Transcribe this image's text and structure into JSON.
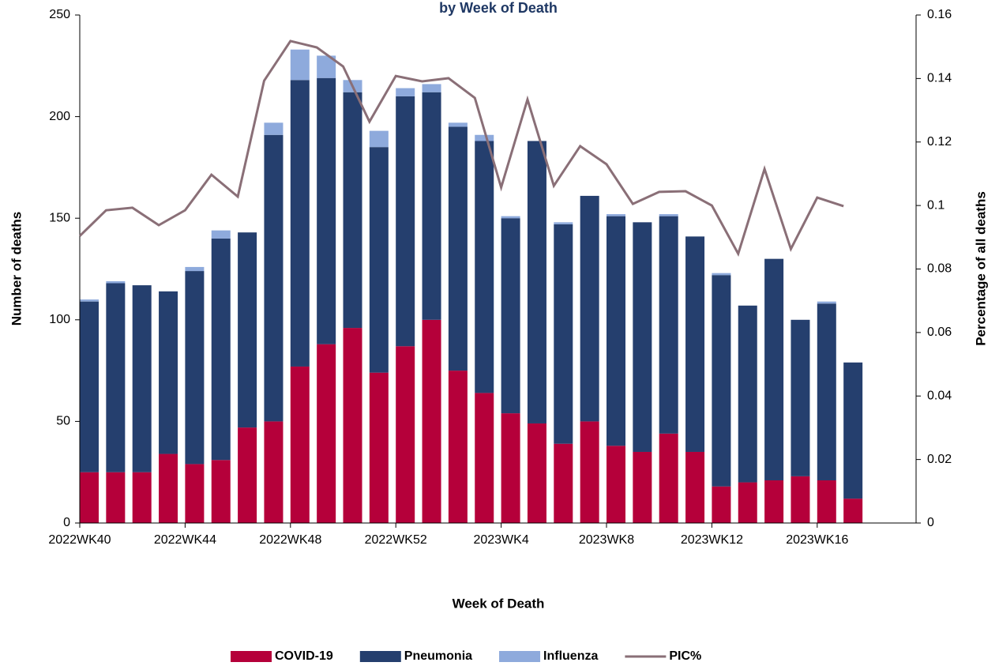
{
  "chart_data": {
    "type": "bar",
    "title": "by Week of Death",
    "x_label": "Week of Death",
    "y_label": "Number of deaths",
    "y2_label": "Percentage of all deaths",
    "categories": [
      "2022WK40",
      null,
      null,
      null,
      "2022WK44",
      null,
      null,
      null,
      "2022WK48",
      null,
      null,
      null,
      "2022WK52",
      null,
      null,
      null,
      "2023WK4",
      null,
      null,
      null,
      "2023WK8",
      null,
      null,
      null,
      "2023WK12",
      null,
      null,
      null,
      "2023WK16",
      null
    ],
    "stacked": true,
    "series": [
      {
        "name": "COVID-19",
        "color": "#b5003a",
        "values": [
          25,
          25,
          25,
          34,
          29,
          31,
          47,
          50,
          77,
          88,
          96,
          74,
          87,
          100,
          75,
          64,
          54,
          49,
          39,
          50,
          38,
          35,
          44,
          35,
          18,
          20,
          21,
          23,
          21,
          12
        ]
      },
      {
        "name": "Pneumonia",
        "color": "#253f6e",
        "values": [
          84,
          93,
          92,
          80,
          95,
          109,
          96,
          141,
          141,
          131,
          116,
          111,
          123,
          112,
          120,
          124,
          96,
          139,
          108,
          111,
          113,
          113,
          107,
          106,
          104,
          87,
          109,
          77,
          87,
          67
        ]
      },
      {
        "name": "Influenza",
        "color": "#8eaadc",
        "values": [
          1,
          1,
          0,
          0,
          2,
          4,
          0,
          6,
          15,
          11,
          6,
          8,
          4,
          4,
          2,
          3,
          1,
          0,
          1,
          0,
          1,
          0,
          1,
          0,
          1,
          0,
          0,
          0,
          1,
          0
        ]
      },
      {
        "name": "PIC%",
        "color": "#8a6f77",
        "type": "line",
        "axis": "y2",
        "values": [
          0.0904,
          0.0985,
          0.0993,
          0.0938,
          0.0985,
          0.1097,
          0.1028,
          0.1393,
          0.1518,
          0.1498,
          0.1438,
          0.1264,
          0.1408,
          0.1391,
          0.1401,
          0.1339,
          0.1057,
          0.1334,
          0.1062,
          0.1187,
          0.113,
          0.1005,
          0.1043,
          0.1045,
          0.1,
          0.0848,
          0.1115,
          0.0863,
          0.1025,
          0.0998
        ]
      }
    ],
    "ylim": [
      0,
      250
    ],
    "yticks": [
      0,
      50,
      100,
      150,
      200,
      250
    ],
    "y2lim": [
      0,
      0.16
    ],
    "y2ticks": [
      0,
      0.02,
      0.04,
      0.06,
      0.08,
      0.1,
      0.12,
      0.14,
      0.16
    ],
    "legend": "bottom"
  }
}
